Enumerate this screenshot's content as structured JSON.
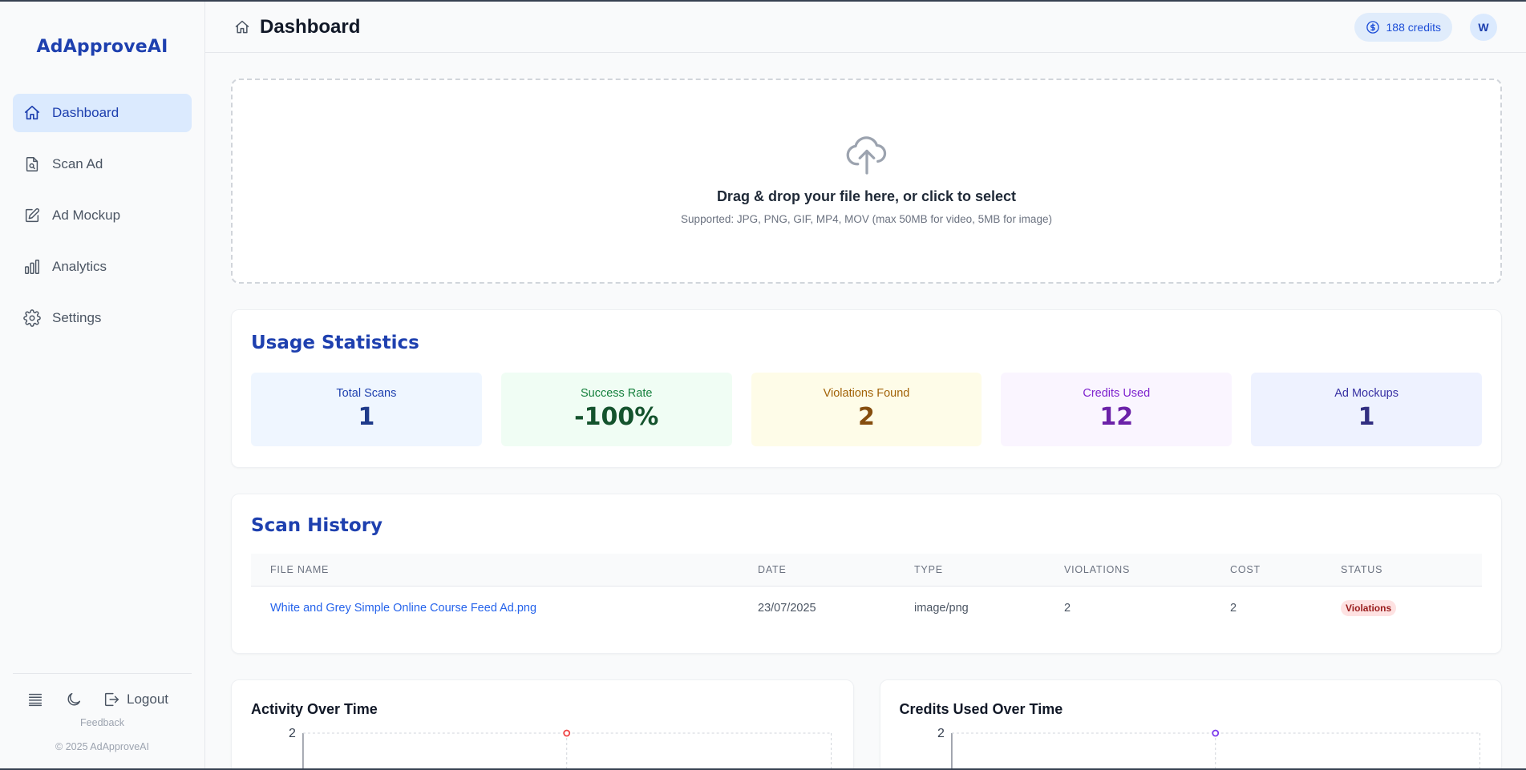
{
  "app": {
    "brand": "AdApproveAI"
  },
  "sidebar": {
    "items": [
      {
        "label": "Dashboard",
        "icon": "home-icon",
        "active": true
      },
      {
        "label": "Scan Ad",
        "icon": "file-search-icon",
        "active": false
      },
      {
        "label": "Ad Mockup",
        "icon": "pencil-square-icon",
        "active": false
      },
      {
        "label": "Analytics",
        "icon": "bar-chart-icon",
        "active": false
      },
      {
        "label": "Settings",
        "icon": "gear-icon",
        "active": false
      }
    ],
    "footer": {
      "logout_label": "Logout",
      "feedback_label": "Feedback",
      "copyright": "© 2025 AdApproveAI"
    }
  },
  "header": {
    "title": "Dashboard",
    "credits": "188 credits",
    "avatar_initial": "W"
  },
  "upload": {
    "title": "Drag & drop your file here, or click to select",
    "subtitle": "Supported: JPG, PNG, GIF, MP4, MOV (max 50MB for video, 5MB for image)"
  },
  "usage": {
    "title": "Usage Statistics",
    "stats": [
      {
        "label": "Total Scans",
        "value": "1"
      },
      {
        "label": "Success Rate",
        "value": "-100%"
      },
      {
        "label": "Violations Found",
        "value": "2"
      },
      {
        "label": "Credits Used",
        "value": "12"
      },
      {
        "label": "Ad Mockups",
        "value": "1"
      }
    ]
  },
  "history": {
    "title": "Scan History",
    "columns": [
      "FILE NAME",
      "DATE",
      "TYPE",
      "VIOLATIONS",
      "COST",
      "STATUS"
    ],
    "rows": [
      {
        "file_name": "White and Grey Simple Online Course Feed Ad.png",
        "date": "23/07/2025",
        "type": "image/png",
        "violations": "2",
        "cost": "2",
        "status": "Violations"
      }
    ]
  },
  "charts": {
    "activity": {
      "title": "Activity Over Time",
      "y_tick_top": "2",
      "point_color": "#ef4444"
    },
    "credits": {
      "title": "Credits Used Over Time",
      "y_tick_top": "2",
      "point_color": "#7c3aed"
    }
  },
  "chart_data": [
    {
      "type": "line",
      "title": "Activity Over Time",
      "ylim_top_tick": 2,
      "points": [
        {
          "y": 2
        }
      ]
    },
    {
      "type": "line",
      "title": "Credits Used Over Time",
      "ylim_top_tick": 2,
      "points": [
        {
          "y": 2
        }
      ]
    }
  ]
}
